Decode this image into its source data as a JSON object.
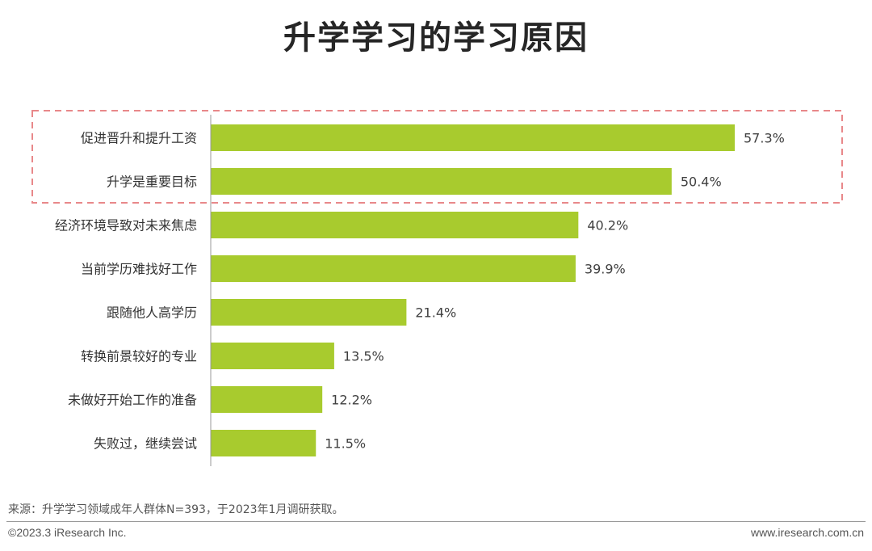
{
  "page": {
    "title": "升学学习的学习原因",
    "source": "来源：升学学习领域成年人群体N=393，于2023年1月调研获取。",
    "copyright": "©2023.3 iResearch Inc.",
    "website": "www.iresearch.com.cn"
  },
  "chart_data": {
    "type": "bar",
    "orientation": "horizontal",
    "title": "升学学习的学习原因",
    "categories": [
      "促进晋升和提升工资",
      "升学是重要目标",
      "经济环境导致对未来焦虑",
      "当前学历难找好工作",
      "跟随他人高学历",
      "转换前景较好的专业",
      "未做好开始工作的准备",
      "失败过，继续尝试"
    ],
    "values": [
      57.3,
      50.4,
      40.2,
      39.9,
      21.4,
      13.5,
      12.2,
      11.5
    ],
    "value_labels": [
      "57.3%",
      "50.4%",
      "40.2%",
      "39.9%",
      "21.4%",
      "13.5%",
      "12.2%",
      "11.5%"
    ],
    "unit": "%",
    "xlim": [
      0,
      57.3
    ],
    "grid": false,
    "highlight": {
      "categories": [
        "促进晋升和提升工资",
        "升学是重要目标"
      ],
      "style": "dashed-box"
    },
    "colors": {
      "bar": "#a8cb2e",
      "highlight_box": "#e8888a",
      "axis": "#999999"
    }
  }
}
